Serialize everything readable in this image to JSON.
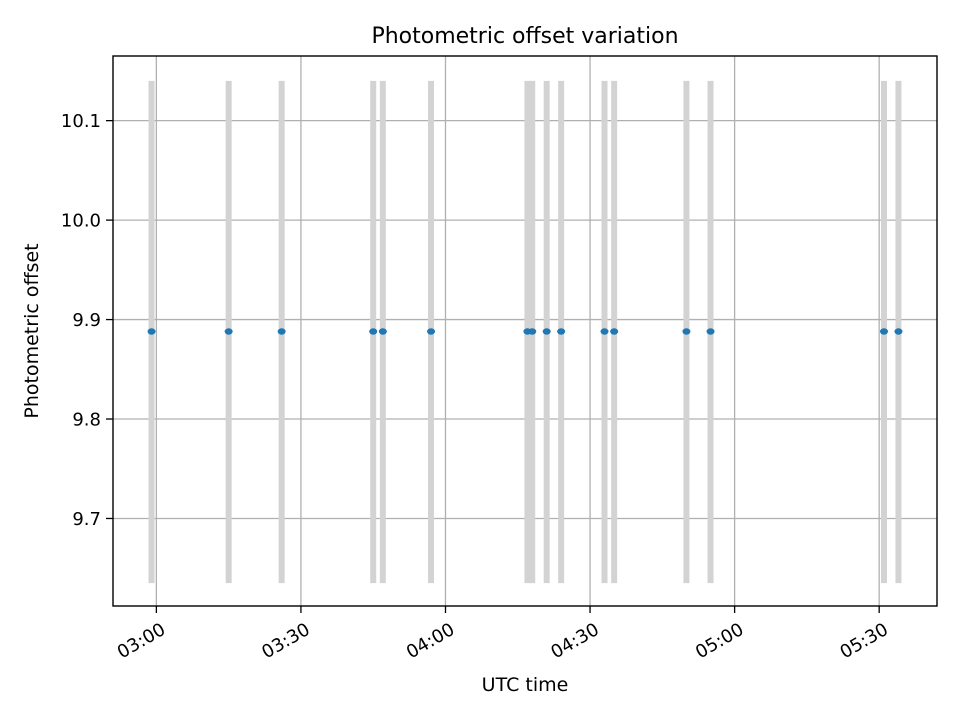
{
  "chart_data": {
    "type": "scatter",
    "title": "Photometric offset variation",
    "xlabel": "UTC time",
    "ylabel": "Photometric offset",
    "x_axis_kind": "time",
    "xlim": [
      "02:51",
      "05:42"
    ],
    "ylim": [
      9.612,
      10.165
    ],
    "xticks": [
      "03:00",
      "03:30",
      "04:00",
      "04:30",
      "05:00",
      "05:30"
    ],
    "yticks": [
      9.7,
      9.8,
      9.9,
      10.0,
      10.1
    ],
    "grid": true,
    "legend": "none",
    "colors": {
      "point": "#1f77b4",
      "bar": "#d3d3d3",
      "grid": "#b0b0b0"
    },
    "series": [
      {
        "x": [
          "02:59",
          "03:15",
          "03:26",
          "03:45",
          "03:47",
          "03:57",
          "04:17",
          "04:18",
          "04:21",
          "04:24",
          "04:33",
          "04:35",
          "04:50",
          "04:55",
          "05:31",
          "05:34"
        ],
        "y": [
          9.888,
          9.888,
          9.888,
          9.888,
          9.888,
          9.888,
          9.888,
          9.888,
          9.888,
          9.888,
          9.888,
          9.888,
          9.888,
          9.888,
          9.888,
          9.888
        ],
        "yerr_low": [
          9.635,
          9.635,
          9.635,
          9.635,
          9.635,
          9.635,
          9.635,
          9.635,
          9.635,
          9.635,
          9.635,
          9.635,
          9.635,
          9.635,
          9.635,
          9.635
        ],
        "yerr_high": [
          10.14,
          10.14,
          10.14,
          10.14,
          10.14,
          10.14,
          10.14,
          10.14,
          10.14,
          10.14,
          10.14,
          10.14,
          10.14,
          10.14,
          10.14,
          10.14
        ]
      }
    ]
  }
}
